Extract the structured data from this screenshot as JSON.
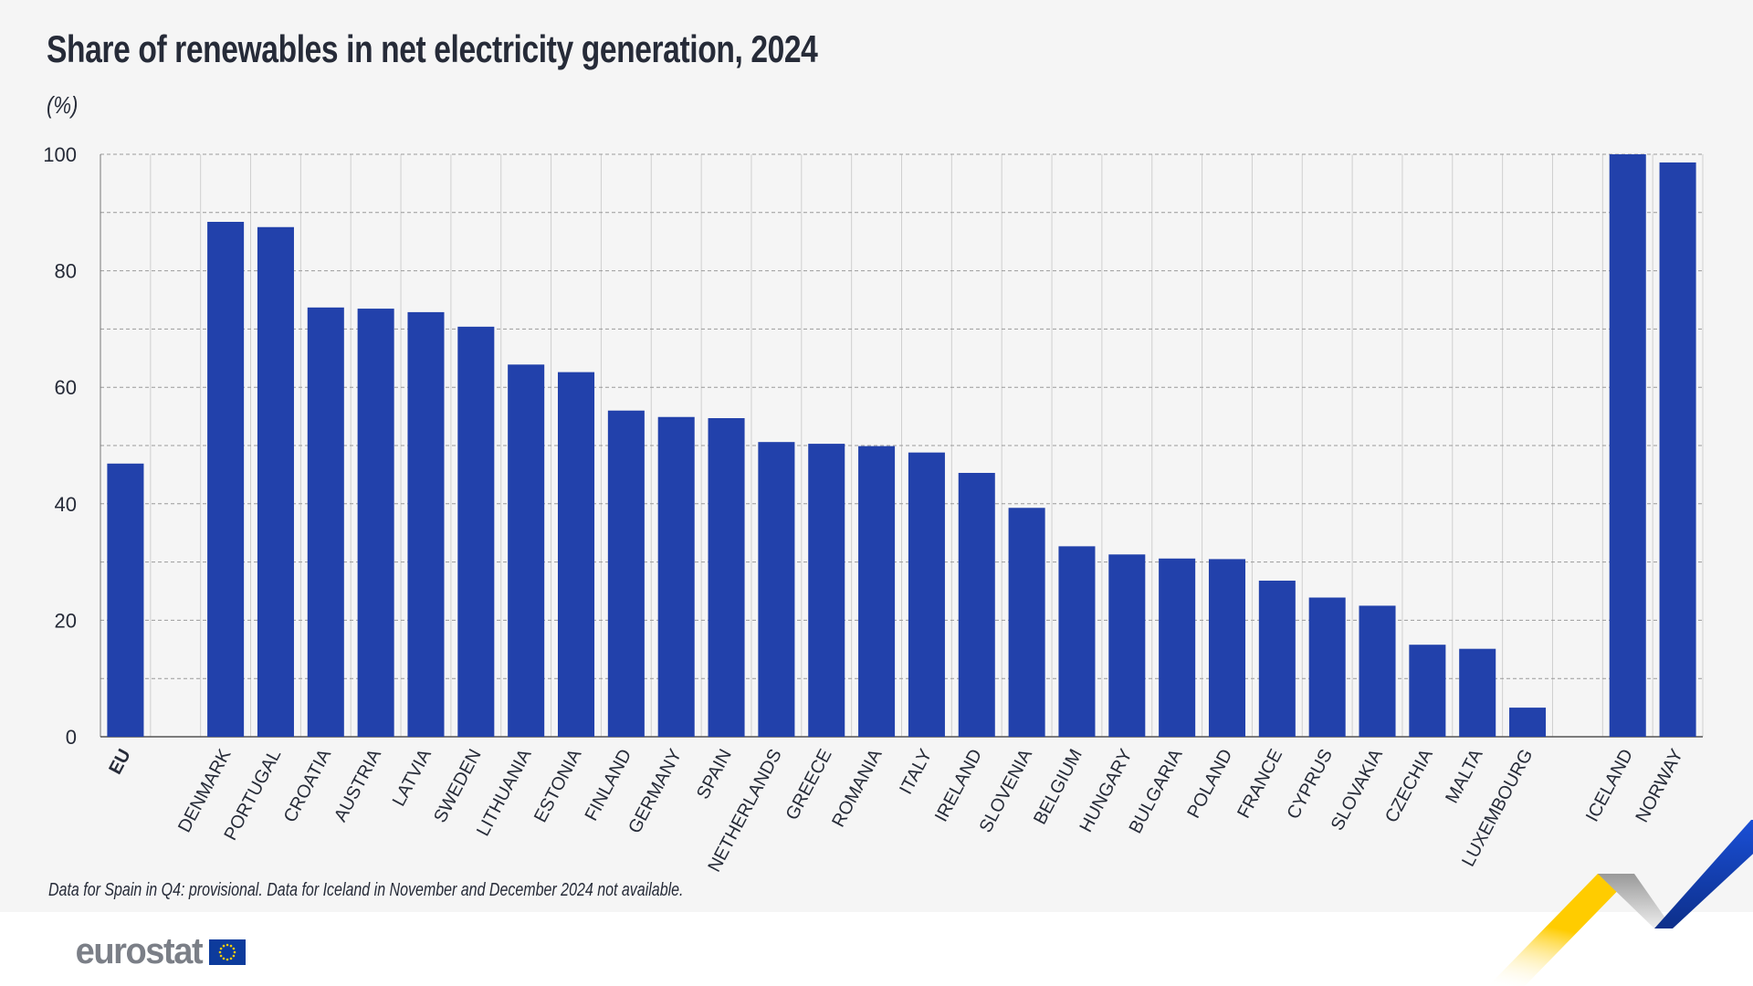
{
  "title": "Share of renewables in net electricity generation, 2024",
  "unit": "(%)",
  "footnote": "Data for Spain in Q4: provisional. Data for Iceland in November and December 2024 not available.",
  "logo": {
    "text": "eurostat"
  },
  "colors": {
    "bar": "#2241ab",
    "background": "#f5f5f5",
    "text": "#262b38"
  },
  "chart_data": {
    "type": "bar",
    "title": "Share of renewables in net electricity generation, 2024",
    "ylabel": "(%)",
    "ylim": [
      0,
      100
    ],
    "yticks": [
      0,
      20,
      40,
      60,
      80,
      100
    ],
    "grid": true,
    "categories": [
      "EU",
      "",
      "DENMARK",
      "PORTUGAL",
      "CROATIA",
      "AUSTRIA",
      "LATVIA",
      "SWEDEN",
      "LITHUANIA",
      "ESTONIA",
      "FINLAND",
      "GERMANY",
      "SPAIN",
      "NETHERLANDS",
      "GREECE",
      "ROMANIA",
      "ITALY",
      "IRELAND",
      "SLOVENIA",
      "BELGIUM",
      "HUNGARY",
      "BULGARIA",
      "POLAND",
      "FRANCE",
      "CYPRUS",
      "SLOVAKIA",
      "CZECHIA",
      "MALTA",
      "LUXEMBOURG",
      "",
      "ICELAND",
      "NORWAY"
    ],
    "values": [
      46.9,
      null,
      88.4,
      87.5,
      73.7,
      73.5,
      72.9,
      70.4,
      63.9,
      62.6,
      56.0,
      54.9,
      54.7,
      50.6,
      50.3,
      49.9,
      48.8,
      45.3,
      39.3,
      32.7,
      31.3,
      30.6,
      30.5,
      26.8,
      23.9,
      22.5,
      15.8,
      15.1,
      5.0,
      null,
      100.0,
      98.6
    ]
  }
}
